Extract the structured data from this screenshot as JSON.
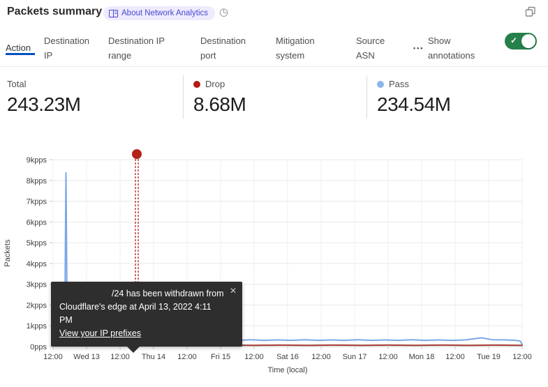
{
  "header": {
    "title": "Packets summary",
    "badge_label": "About Network Analytics",
    "clock_glyph": "◷"
  },
  "tabs": {
    "items": [
      {
        "label": "Action",
        "active": true
      },
      {
        "label": "Destination IP",
        "active": false
      },
      {
        "label": "Destination IP range",
        "active": false
      },
      {
        "label": "Destination port",
        "active": false
      },
      {
        "label": "Mitigation system",
        "active": false
      },
      {
        "label": "Source ASN",
        "active": false
      }
    ],
    "more_label": "•••",
    "annotations_toggle": {
      "label": "Show annotations",
      "state": "on",
      "check_glyph": "✓"
    }
  },
  "stats": {
    "items": [
      {
        "label": "Total",
        "value": "243.23M",
        "dot_color": null
      },
      {
        "label": "Drop",
        "value": "8.68M",
        "dot_color": "#b11d14"
      },
      {
        "label": "Pass",
        "value": "234.54M",
        "dot_color": "#8cb6ea"
      }
    ]
  },
  "tooltip": {
    "message": "/24 has been withdrawn from Cloudflare's edge at April 13, 2022 4:11 PM",
    "link_label": "View your IP prefixes",
    "close_glyph": "✕"
  },
  "colors": {
    "accent_blue": "#0051c3",
    "toggle_green": "#26804a",
    "badge_bg": "#edebfd",
    "badge_text": "#4a48d0",
    "pass_line": "#7aa7e8",
    "drop_line": "#a63d35",
    "annotation_red": "#b42318",
    "tooltip_bg": "#2e2e2e"
  },
  "chart_data": {
    "type": "line",
    "title": "",
    "xlabel": "Time (local)",
    "ylabel": "Packets",
    "unit": "kpps",
    "ylim": [
      0,
      9
    ],
    "grid": true,
    "y_tick_labels": [
      "0pps",
      "1kpps",
      "2kpps",
      "3kpps",
      "4kpps",
      "5kpps",
      "6kpps",
      "7kpps",
      "8kpps",
      "9kpps"
    ],
    "x_tick_labels": [
      "12:00",
      "Wed 13",
      "12:00",
      "Thu 14",
      "12:00",
      "Fri 15",
      "12:00",
      "Sat 16",
      "12:00",
      "Sun 17",
      "12:00",
      "Mon 18",
      "12:00",
      "Tue 19",
      "12:00"
    ],
    "series": [
      {
        "name": "Pass",
        "color": "#7aa7e8",
        "points": [
          [
            0,
            0.27
          ],
          [
            0.2,
            0.28
          ],
          [
            0.3,
            0.6
          ],
          [
            0.35,
            1.1
          ],
          [
            0.385,
            8.37
          ],
          [
            0.42,
            1.2
          ],
          [
            0.5,
            0.8
          ],
          [
            0.62,
            0.5
          ],
          [
            0.8,
            0.36
          ],
          [
            1.0,
            0.3
          ],
          [
            1.3,
            0.3
          ],
          [
            1.55,
            0.32
          ],
          [
            1.69,
            0.5
          ],
          [
            1.85,
            0.32
          ],
          [
            2.05,
            0.3
          ],
          [
            2.23,
            0.44
          ],
          [
            2.4,
            0.31
          ],
          [
            2.55,
            0.33
          ],
          [
            2.8,
            0.3
          ],
          [
            3.15,
            0.42
          ],
          [
            3.35,
            0.3
          ],
          [
            3.69,
            0.38
          ],
          [
            3.9,
            0.3
          ],
          [
            4.1,
            0.36
          ],
          [
            4.3,
            0.3
          ],
          [
            4.52,
            0.38
          ],
          [
            4.75,
            0.3
          ],
          [
            5.1,
            0.33
          ],
          [
            5.5,
            0.3
          ],
          [
            5.9,
            0.33
          ],
          [
            6.3,
            0.3
          ],
          [
            6.7,
            0.32
          ],
          [
            7.1,
            0.3
          ],
          [
            7.5,
            0.33
          ],
          [
            7.9,
            0.3
          ],
          [
            8.3,
            0.32
          ],
          [
            8.7,
            0.3
          ],
          [
            9.1,
            0.33
          ],
          [
            9.5,
            0.3
          ],
          [
            9.9,
            0.32
          ],
          [
            10.3,
            0.3
          ],
          [
            10.7,
            0.33
          ],
          [
            11.1,
            0.3
          ],
          [
            11.5,
            0.32
          ],
          [
            11.9,
            0.3
          ],
          [
            12.3,
            0.32
          ],
          [
            12.79,
            0.42
          ],
          [
            13.1,
            0.33
          ],
          [
            13.5,
            0.32
          ],
          [
            13.8,
            0.3
          ],
          [
            13.94,
            0.27
          ],
          [
            14,
            0.1
          ]
        ]
      },
      {
        "name": "Drop",
        "color": "#a63d35",
        "points": [
          [
            0,
            0.06
          ],
          [
            0.6,
            0.07
          ],
          [
            1.2,
            0.06
          ],
          [
            1.8,
            0.07
          ],
          [
            2.4,
            0.06
          ],
          [
            3.0,
            0.07
          ],
          [
            3.35,
            0.08
          ],
          [
            3.5,
            0.12
          ],
          [
            3.58,
            0.35
          ],
          [
            3.68,
            0.12
          ],
          [
            3.85,
            0.07
          ],
          [
            4.5,
            0.06
          ],
          [
            5.2,
            0.07
          ],
          [
            6.0,
            0.06
          ],
          [
            6.8,
            0.07
          ],
          [
            7.6,
            0.06
          ],
          [
            8.4,
            0.07
          ],
          [
            9.2,
            0.06
          ],
          [
            10.0,
            0.07
          ],
          [
            10.8,
            0.06
          ],
          [
            11.6,
            0.07
          ],
          [
            12.4,
            0.06
          ],
          [
            13.2,
            0.07
          ],
          [
            14,
            0.06
          ]
        ]
      }
    ],
    "annotation": {
      "t": 2.5,
      "time": "April 13, 2022 4:11 PM",
      "color": "#b42318"
    }
  }
}
